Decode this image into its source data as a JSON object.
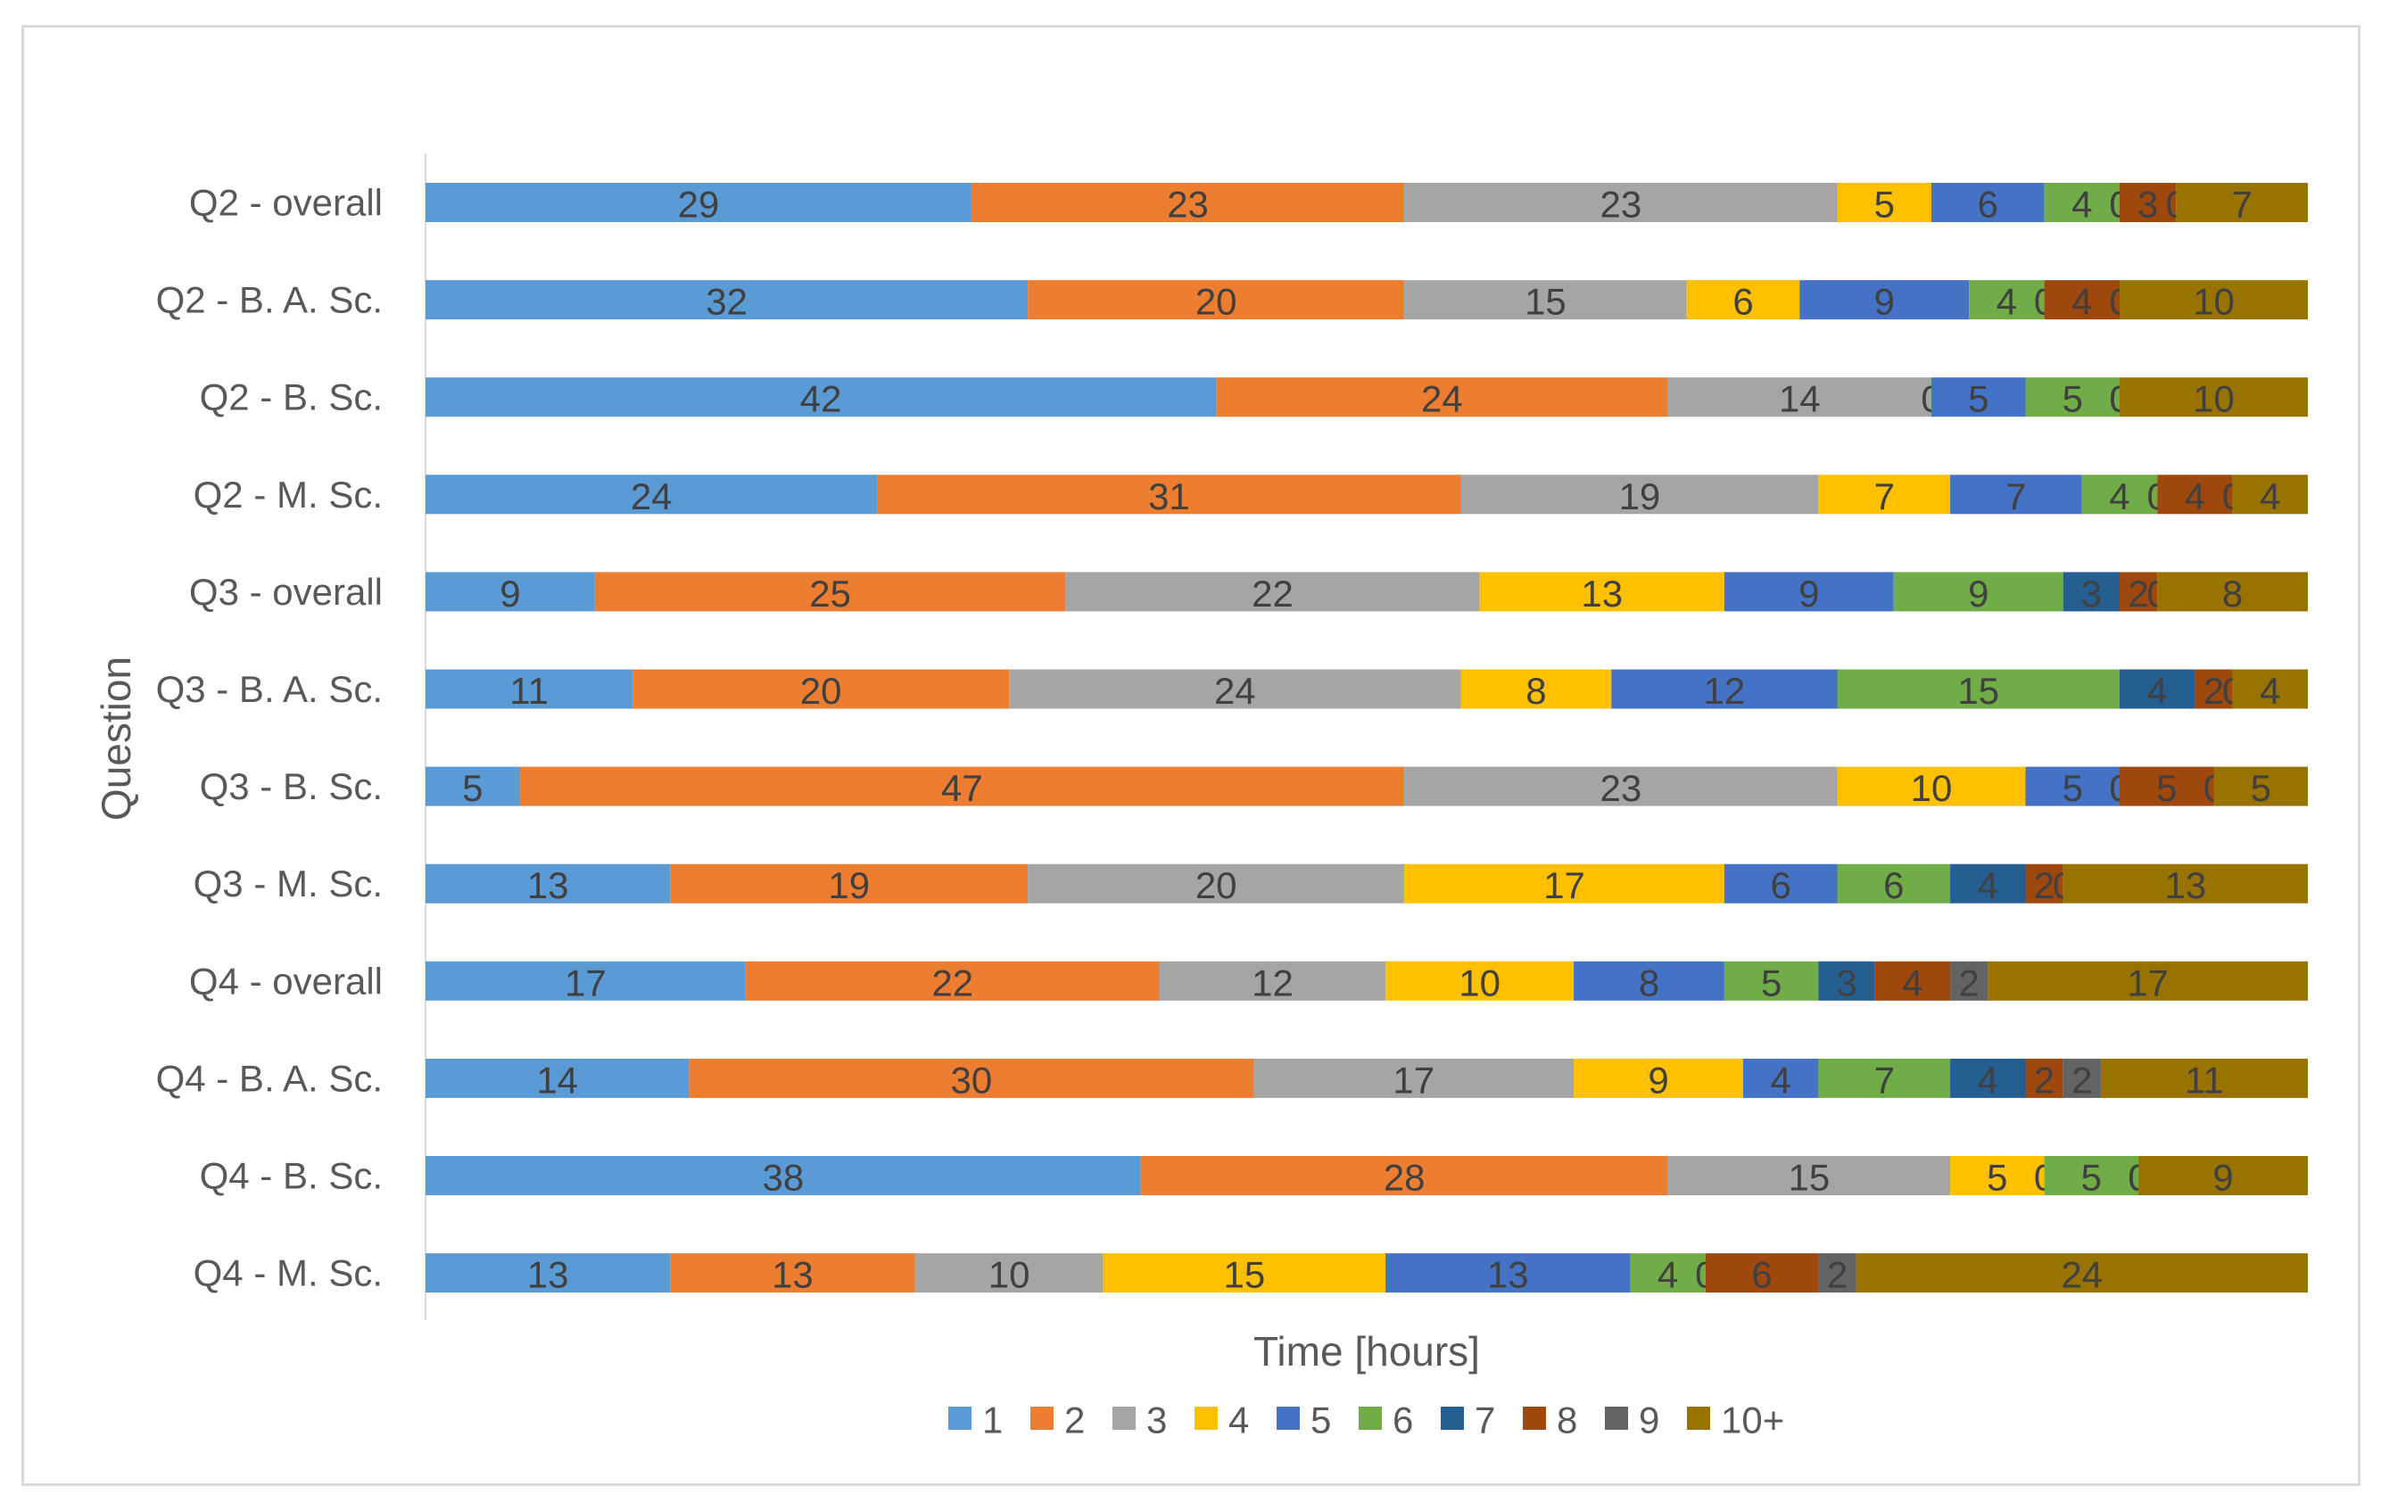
{
  "chart_data": {
    "type": "bar",
    "orientation": "horizontal",
    "stacked": true,
    "title": "",
    "xlabel": "Time [hours]",
    "ylabel": "Question",
    "xlim": [
      0,
      100
    ],
    "grid": false,
    "legend_position": "bottom",
    "categories": [
      "Q2 - overall",
      "Q2 - B. A. Sc.",
      "Q2 - B. Sc.",
      "Q2 - M. Sc.",
      "Q3 - overall",
      "Q3 - B. A. Sc.",
      "Q3 - B. Sc.",
      "Q3 - M. Sc.",
      "Q4 - overall",
      "Q4 - B. A. Sc.",
      "Q4 - B. Sc.",
      "Q4 - M. Sc."
    ],
    "series": [
      {
        "name": "1",
        "color": "#5b9bd5",
        "values": [
          29,
          32,
          42,
          24,
          9,
          11,
          5,
          13,
          17,
          14,
          38,
          13
        ]
      },
      {
        "name": "2",
        "color": "#ed7d31",
        "values": [
          23,
          20,
          24,
          31,
          25,
          20,
          47,
          19,
          22,
          30,
          28,
          13
        ]
      },
      {
        "name": "3",
        "color": "#a5a5a5",
        "values": [
          23,
          15,
          14,
          19,
          22,
          24,
          23,
          20,
          12,
          17,
          15,
          10
        ]
      },
      {
        "name": "4",
        "color": "#ffc000",
        "values": [
          5,
          6,
          0,
          7,
          13,
          8,
          10,
          17,
          10,
          9,
          5,
          15
        ]
      },
      {
        "name": "5",
        "color": "#4472c4",
        "values": [
          6,
          9,
          5,
          7,
          9,
          12,
          5,
          6,
          8,
          4,
          0,
          13
        ]
      },
      {
        "name": "6",
        "color": "#70ad47",
        "values": [
          4,
          4,
          5,
          4,
          9,
          15,
          0,
          6,
          5,
          7,
          5,
          4
        ]
      },
      {
        "name": "7",
        "color": "#255e91",
        "values": [
          0,
          0,
          0,
          0,
          3,
          4,
          0,
          4,
          3,
          4,
          0,
          0
        ]
      },
      {
        "name": "8",
        "color": "#9e480e",
        "values": [
          3,
          4,
          0,
          4,
          2,
          2,
          5,
          2,
          4,
          2,
          0,
          6
        ]
      },
      {
        "name": "9",
        "color": "#636363",
        "values": [
          0,
          0,
          0,
          0,
          0,
          0,
          0,
          0,
          2,
          2,
          0,
          2
        ]
      },
      {
        "name": "10+",
        "color": "#997300",
        "values": [
          7,
          10,
          10,
          4,
          8,
          4,
          5,
          13,
          17,
          11,
          9,
          24
        ]
      }
    ]
  }
}
